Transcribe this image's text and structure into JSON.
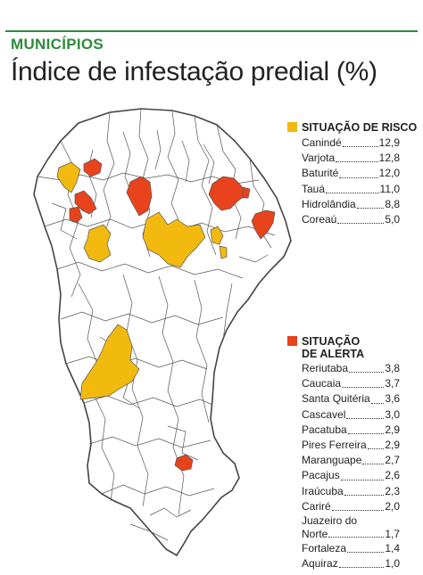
{
  "header": {
    "kicker": "MUNICÍPIOS",
    "title": "Índice de infestação predial (%)"
  },
  "colors": {
    "risk": "#f2b90f",
    "alert": "#e8431c",
    "accent": "#2e8b3a",
    "map_fill": "#ffffff",
    "border": "#444444"
  },
  "legend": {
    "risk": {
      "label": "SITUAÇÃO DE RISCO",
      "items": [
        {
          "name": "Canindé",
          "value": "12,9"
        },
        {
          "name": "Varjota",
          "value": "12,8"
        },
        {
          "name": "Baturité",
          "value": "12,0"
        },
        {
          "name": "Tauá",
          "value": "11,0"
        },
        {
          "name": "Hidrolândia",
          "value": "8,8"
        },
        {
          "name": "Coreaú",
          "value": "5,0"
        }
      ]
    },
    "alert": {
      "label_line1": "SITUAÇÃO",
      "label_line2": "DE ALERTA",
      "items": [
        {
          "name": "Reriutaba",
          "value": "3,8"
        },
        {
          "name": "Caucaia",
          "value": "3,7"
        },
        {
          "name": "Santa Quitéria",
          "value": "3,6"
        },
        {
          "name": "Cascavel",
          "value": "3,0"
        },
        {
          "name": "Pacatuba",
          "value": "2,9"
        },
        {
          "name": "Pires Ferreira",
          "value": "2,9"
        },
        {
          "name": "Maranguape",
          "value": "2,7"
        },
        {
          "name": "Pacajus",
          "value": "2,6"
        },
        {
          "name": "Iraúcuba",
          "value": "2,3"
        },
        {
          "name": "Cariré",
          "value": "2,0"
        },
        {
          "name": "Juazeiro do",
          "name2": "Norte",
          "value": "1,7"
        },
        {
          "name": "Fortaleza",
          "value": "1,4"
        },
        {
          "name": "Aquiraz",
          "value": "1,0"
        }
      ]
    }
  }
}
